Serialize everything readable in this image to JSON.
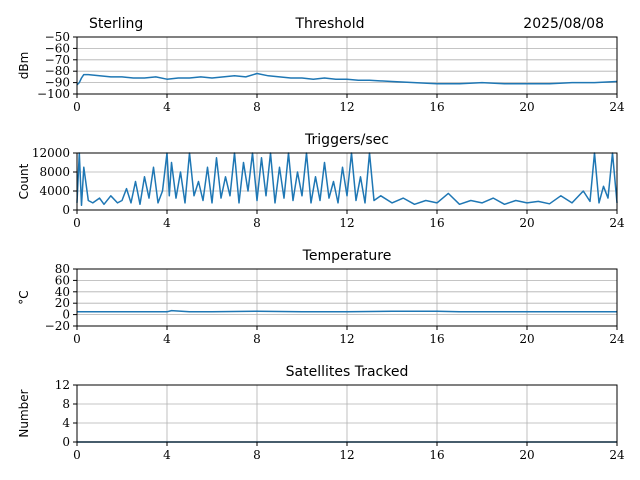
{
  "header": {
    "left": "Sterling",
    "center": "Threshold",
    "right": "2025/08/08"
  },
  "chart_data": [
    {
      "type": "line",
      "title": "",
      "ylabel": "dBm",
      "xlim": [
        0,
        24
      ],
      "ylim": [
        -100,
        -50
      ],
      "xticks": [
        0,
        4,
        8,
        12,
        16,
        20,
        24
      ],
      "yticks": [
        -100,
        -90,
        -80,
        -70,
        -60,
        -50
      ],
      "ytick_labels": [
        "−100",
        "−90",
        "−80",
        "−70",
        "−60",
        "−50"
      ],
      "grid": true,
      "series": [
        {
          "color": "#1f77b4",
          "x": [
            0,
            0.1,
            0.2,
            0.3,
            0.5,
            1,
            1.5,
            2,
            2.5,
            3,
            3.5,
            4,
            4.5,
            5,
            5.5,
            6,
            6.5,
            7,
            7.5,
            8,
            8.5,
            9,
            9.5,
            10,
            10.5,
            11,
            11.5,
            12,
            12.5,
            13,
            14,
            15,
            16,
            17,
            18,
            19,
            20,
            21,
            22,
            23,
            24
          ],
          "y": [
            -92,
            -90,
            -86,
            -83,
            -83,
            -84,
            -85,
            -85,
            -86,
            -86,
            -85,
            -87,
            -86,
            -86,
            -85,
            -86,
            -85,
            -84,
            -85,
            -82,
            -84,
            -85,
            -86,
            -86,
            -87,
            -86,
            -87,
            -87,
            -88,
            -88,
            -89,
            -90,
            -91,
            -91,
            -90,
            -91,
            -91,
            -91,
            -90,
            -90,
            -89
          ]
        }
      ]
    },
    {
      "type": "line",
      "title": "Triggers/sec",
      "ylabel": "Count",
      "xlim": [
        0,
        24
      ],
      "ylim": [
        0,
        12000
      ],
      "xticks": [
        0,
        4,
        8,
        12,
        16,
        20,
        24
      ],
      "yticks": [
        0,
        4000,
        8000,
        12000
      ],
      "grid": true,
      "series": [
        {
          "color": "#1f77b4",
          "x": [
            0,
            0.1,
            0.2,
            0.3,
            0.5,
            0.7,
            1,
            1.2,
            1.5,
            1.8,
            2,
            2.2,
            2.4,
            2.6,
            2.8,
            3,
            3.2,
            3.4,
            3.6,
            3.8,
            4,
            4.1,
            4.2,
            4.4,
            4.6,
            4.8,
            5,
            5.2,
            5.4,
            5.6,
            5.8,
            6,
            6.2,
            6.4,
            6.6,
            6.8,
            7,
            7.2,
            7.4,
            7.6,
            7.8,
            8,
            8.2,
            8.4,
            8.6,
            8.8,
            9,
            9.2,
            9.4,
            9.6,
            9.8,
            10,
            10.2,
            10.4,
            10.6,
            10.8,
            11,
            11.2,
            11.4,
            11.6,
            11.8,
            12,
            12.2,
            12.4,
            12.6,
            12.8,
            13,
            13.2,
            13.5,
            14,
            14.5,
            15,
            15.5,
            16,
            16.5,
            17,
            17.5,
            18,
            18.5,
            19,
            19.5,
            20,
            20.5,
            21,
            21.5,
            22,
            22.5,
            22.8,
            23,
            23.2,
            23.4,
            23.6,
            23.8,
            24
          ],
          "y": [
            1500,
            12000,
            1000,
            9000,
            2000,
            1500,
            2500,
            1200,
            3000,
            1500,
            2000,
            4500,
            1500,
            6000,
            1200,
            7000,
            2500,
            9000,
            1500,
            4000,
            12000,
            3000,
            10000,
            2500,
            8000,
            1500,
            12000,
            3000,
            6000,
            2000,
            9000,
            1500,
            11000,
            2500,
            7000,
            3000,
            12000,
            1500,
            10000,
            4000,
            12000,
            2000,
            11000,
            3000,
            12000,
            1500,
            9000,
            2500,
            12000,
            2000,
            8000,
            3000,
            12000,
            1500,
            7000,
            2000,
            10000,
            2500,
            6000,
            1500,
            9000,
            3000,
            12000,
            2000,
            7000,
            1500,
            12000,
            2000,
            3000,
            1500,
            2500,
            1200,
            2000,
            1500,
            3500,
            1200,
            2000,
            1500,
            2500,
            1200,
            2000,
            1500,
            1800,
            1300,
            3000,
            1500,
            4000,
            1800,
            12000,
            1500,
            5000,
            2500,
            12000,
            1500
          ]
        }
      ]
    },
    {
      "type": "line",
      "title": "Temperature",
      "ylabel": "°C",
      "xlim": [
        0,
        24
      ],
      "ylim": [
        -20,
        80
      ],
      "xticks": [
        0,
        4,
        8,
        12,
        16,
        20,
        24
      ],
      "yticks": [
        -20,
        0,
        20,
        40,
        60,
        80
      ],
      "ytick_labels": [
        "−20",
        "0",
        "20",
        "40",
        "60",
        "80"
      ],
      "grid": true,
      "series": [
        {
          "color": "#1f77b4",
          "x": [
            0,
            2,
            4,
            4.2,
            5,
            6,
            8,
            10,
            12,
            14,
            16,
            17,
            18,
            20,
            22,
            24
          ],
          "y": [
            5,
            5,
            5,
            7,
            5,
            5,
            6,
            5,
            5,
            6,
            6,
            5,
            5,
            5,
            5,
            5
          ]
        }
      ]
    },
    {
      "type": "line",
      "title": "Satellites Tracked",
      "ylabel": "Number",
      "xlim": [
        0,
        24
      ],
      "ylim": [
        0,
        12
      ],
      "xticks": [
        0,
        4,
        8,
        12,
        16,
        20,
        24
      ],
      "yticks": [
        0,
        4,
        8,
        12
      ],
      "grid": true,
      "series": [
        {
          "color": "#1f77b4",
          "x": [
            0,
            24
          ],
          "y": [
            0,
            0
          ]
        }
      ]
    }
  ]
}
